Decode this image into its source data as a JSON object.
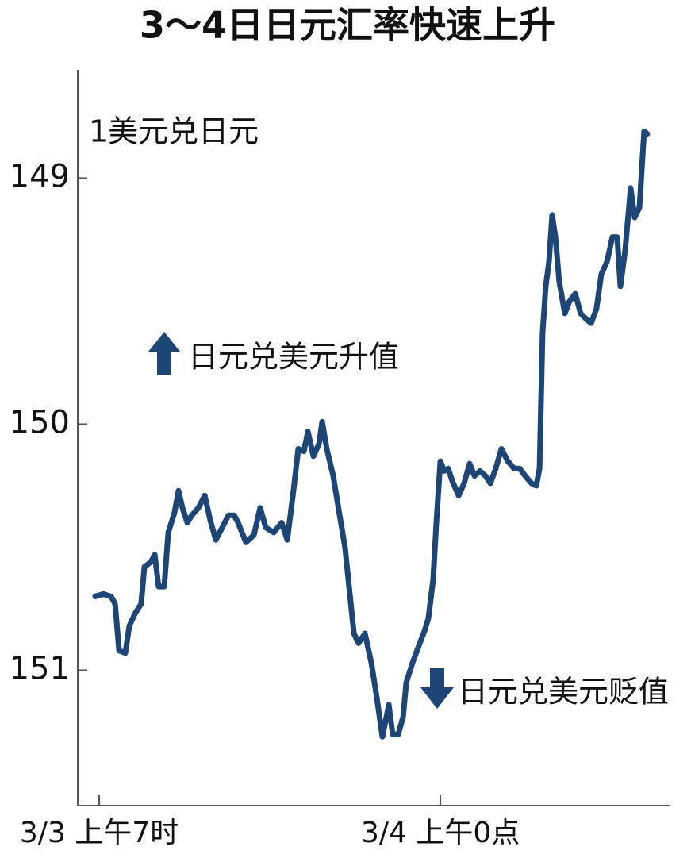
{
  "chart_data": {
    "type": "line",
    "title": "3～4日日元汇率快速上升",
    "y_label": "1美元兑日元",
    "annotations": [
      "日元兑美元升值",
      "日元兑美元贬值"
    ],
    "y_inverted": true,
    "ylim": [
      148.56,
      151.55
    ],
    "yticks": [
      149,
      150,
      151
    ],
    "xlim": [
      -1.07,
      28.46
    ],
    "xticks": [
      {
        "value": 0,
        "label": "3/3 上午7时"
      },
      {
        "value": 17,
        "label": "3/4 上午0点"
      }
    ],
    "x": [
      -0.2,
      0.2,
      0.59,
      0.79,
      0.99,
      1.3,
      1.5,
      1.78,
      2.09,
      2.25,
      2.57,
      2.77,
      2.96,
      3.24,
      3.44,
      3.75,
      3.95,
      4.15,
      4.39,
      4.62,
      4.94,
      5.26,
      5.53,
      5.81,
      6.13,
      6.44,
      6.72,
      6.92,
      7.31,
      7.71,
      8.02,
      8.3,
      8.7,
      9.09,
      9.37,
      9.68,
      9.92,
      10.2,
      10.4,
      10.67,
      10.95,
      11.11,
      11.34,
      11.66,
      11.98,
      12.25,
      12.45,
      12.69,
      12.92,
      13.24,
      13.56,
      13.83,
      14.11,
      14.43,
      14.62,
      14.9,
      15.14,
      15.3,
      15.61,
      15.93,
      16.21,
      16.4,
      16.64,
      16.8,
      17.0,
      17.19,
      17.39,
      17.59,
      17.91,
      18.18,
      18.46,
      18.7,
      18.97,
      19.25,
      19.49,
      19.76,
      20.04,
      20.36,
      20.67,
      20.95,
      21.23,
      21.54,
      21.78,
      21.94,
      22.09,
      22.25,
      22.41,
      22.57,
      22.73,
      22.92,
      23.2,
      23.44,
      23.72,
      23.99,
      24.23,
      24.51,
      24.78,
      25.02,
      25.3,
      25.57,
      25.81,
      25.97,
      26.21,
      26.48,
      26.68,
      26.92,
      27.15,
      27.31
    ],
    "series": [
      {
        "name": "1美元兑日元",
        "color": "#1d4677",
        "values": [
          150.7,
          150.69,
          150.7,
          150.73,
          150.92,
          150.93,
          150.82,
          150.77,
          150.73,
          150.58,
          150.56,
          150.53,
          150.66,
          150.66,
          150.44,
          150.36,
          150.27,
          150.34,
          150.4,
          150.37,
          150.34,
          150.29,
          150.39,
          150.47,
          150.42,
          150.37,
          150.37,
          150.4,
          150.48,
          150.45,
          150.34,
          150.42,
          150.44,
          150.4,
          150.47,
          150.27,
          150.1,
          150.11,
          150.03,
          150.13,
          150.08,
          149.99,
          150.1,
          150.21,
          150.37,
          150.5,
          150.66,
          150.85,
          150.89,
          150.85,
          150.97,
          151.11,
          151.27,
          151.14,
          151.26,
          151.26,
          151.19,
          151.05,
          150.97,
          150.9,
          150.84,
          150.79,
          150.63,
          150.4,
          150.15,
          150.19,
          150.18,
          150.23,
          150.29,
          150.24,
          150.16,
          150.21,
          150.19,
          150.21,
          150.24,
          150.18,
          150.1,
          150.15,
          150.18,
          150.18,
          150.21,
          150.24,
          150.25,
          150.18,
          149.63,
          149.44,
          149.34,
          149.15,
          149.24,
          149.42,
          149.55,
          149.5,
          149.47,
          149.55,
          149.57,
          149.59,
          149.53,
          149.39,
          149.34,
          149.24,
          149.24,
          149.44,
          149.29,
          149.04,
          149.16,
          149.12,
          148.81,
          148.82
        ]
      }
    ]
  }
}
